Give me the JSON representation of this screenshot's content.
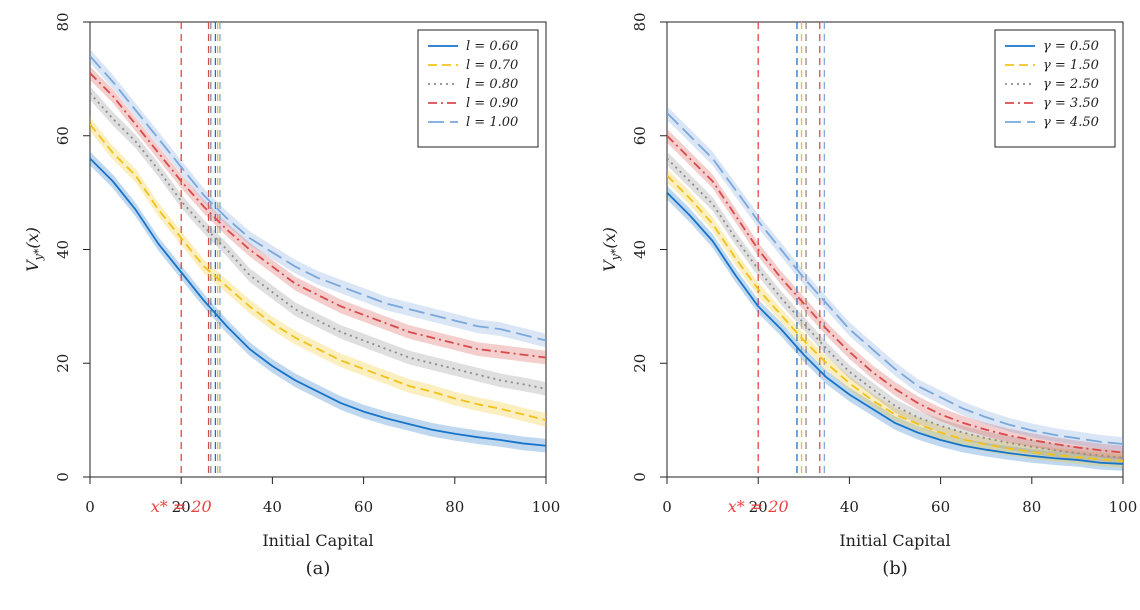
{
  "chart_data": [
    {
      "type": "line",
      "panel_label": "(a)",
      "xlabel": "Initial Capital",
      "ylabel": "V_{y*}(x)",
      "xlim": [
        0,
        100
      ],
      "ylim": [
        0,
        80
      ],
      "xticks": [
        0,
        20,
        40,
        60,
        80,
        100
      ],
      "yticks": [
        0,
        20,
        40,
        60,
        80
      ],
      "xstar_label": "x* = 20",
      "xstar_value": 20,
      "xstar_color": "#e8433f",
      "legend_position": "top-right",
      "series": [
        {
          "name": "l = 0.60",
          "color": "#1874c9",
          "dash": "solid",
          "vline": 27.5,
          "x": [
            0,
            5,
            10,
            15,
            20,
            25,
            30,
            35,
            40,
            45,
            50,
            55,
            60,
            65,
            70,
            75,
            80,
            85,
            90,
            95,
            100
          ],
          "values": [
            56,
            52,
            47,
            41,
            36,
            31,
            26.5,
            22.5,
            19.5,
            17,
            15,
            13,
            11.5,
            10.3,
            9.3,
            8.3,
            7.6,
            7,
            6.5,
            5.9,
            5.5
          ]
        },
        {
          "name": "l = 0.70",
          "color": "#f2c21a",
          "dash": "dashed",
          "vline": 28,
          "x": [
            0,
            5,
            10,
            15,
            20,
            25,
            30,
            35,
            40,
            45,
            50,
            55,
            60,
            65,
            70,
            75,
            80,
            85,
            90,
            95,
            100
          ],
          "values": [
            62,
            57,
            53,
            47,
            42,
            37,
            33.5,
            30,
            27,
            24.5,
            22.5,
            20.5,
            19,
            17.5,
            16,
            15,
            13.8,
            12.8,
            12,
            11,
            10
          ]
        },
        {
          "name": "l = 0.80",
          "color": "#8c8c8c",
          "dash": "dotted",
          "vline": 26.5,
          "x": [
            0,
            5,
            10,
            15,
            20,
            25,
            30,
            35,
            40,
            45,
            50,
            55,
            60,
            65,
            70,
            75,
            80,
            85,
            90,
            95,
            100
          ],
          "values": [
            67.5,
            63,
            59,
            54,
            48.5,
            44,
            40,
            35.5,
            32.5,
            29.5,
            27.5,
            25.5,
            24,
            22.5,
            21,
            20,
            19,
            18,
            17,
            16.3,
            15.5
          ]
        },
        {
          "name": "l = 0.90",
          "color": "#d94a4a",
          "dash": "dashdot",
          "vline": 26,
          "x": [
            0,
            5,
            10,
            15,
            20,
            25,
            30,
            35,
            40,
            45,
            50,
            55,
            60,
            65,
            70,
            75,
            80,
            85,
            90,
            95,
            100
          ],
          "values": [
            71,
            67,
            62,
            57,
            52,
            47.5,
            43.5,
            40,
            37,
            34,
            32,
            30,
            28.5,
            27,
            25.5,
            24.5,
            23.5,
            22.5,
            22,
            21.5,
            21
          ]
        },
        {
          "name": "l = 1.00",
          "color": "#7aa7dc",
          "dash": "longdash",
          "vline": 28.5,
          "x": [
            0,
            5,
            10,
            15,
            20,
            25,
            30,
            35,
            40,
            45,
            50,
            55,
            60,
            65,
            70,
            75,
            80,
            85,
            90,
            95,
            100
          ],
          "values": [
            74,
            69.5,
            64.5,
            59.5,
            54.5,
            49.5,
            45.5,
            42,
            39.5,
            37,
            35,
            33.5,
            32,
            30.5,
            29.5,
            28.5,
            27.5,
            26.5,
            26,
            25,
            24
          ]
        }
      ]
    },
    {
      "type": "line",
      "panel_label": "(b)",
      "xlabel": "Initial Capital",
      "ylabel": "V_{y*}(x)",
      "xlim": [
        0,
        100
      ],
      "ylim": [
        0,
        80
      ],
      "xticks": [
        0,
        20,
        40,
        60,
        80,
        100
      ],
      "yticks": [
        0,
        20,
        40,
        60,
        80
      ],
      "xstar_label": "x* = 20",
      "xstar_value": 20,
      "xstar_color": "#e8433f",
      "legend_position": "top-right",
      "series": [
        {
          "name": "γ = 0.50",
          "color": "#1874c9",
          "dash": "solid",
          "vline": 28.5,
          "x": [
            0,
            5,
            10,
            15,
            20,
            25,
            30,
            35,
            40,
            45,
            50,
            55,
            60,
            65,
            70,
            75,
            80,
            85,
            90,
            95,
            100
          ],
          "values": [
            50,
            46,
            41.5,
            35.5,
            30,
            26,
            21.5,
            17.5,
            14.5,
            12,
            9.5,
            7.8,
            6.5,
            5.5,
            4.8,
            4.2,
            3.7,
            3.3,
            3,
            2.5,
            2.3
          ]
        },
        {
          "name": "γ = 1.50",
          "color": "#f2c21a",
          "dash": "dashed",
          "vline": 29.5,
          "x": [
            0,
            5,
            10,
            15,
            20,
            25,
            30,
            35,
            40,
            45,
            50,
            55,
            60,
            65,
            70,
            75,
            80,
            85,
            90,
            95,
            100
          ],
          "values": [
            53,
            49,
            44.5,
            38.5,
            33,
            28.5,
            24,
            20,
            16.5,
            13.5,
            11,
            9.3,
            7.8,
            6.6,
            5.7,
            5,
            4.4,
            3.9,
            3.5,
            3.1,
            2.8
          ]
        },
        {
          "name": "γ = 2.50",
          "color": "#8c8c8c",
          "dash": "dotted",
          "vline": 30.5,
          "x": [
            0,
            5,
            10,
            15,
            20,
            25,
            30,
            35,
            40,
            45,
            50,
            55,
            60,
            65,
            70,
            75,
            80,
            85,
            90,
            95,
            100
          ],
          "values": [
            56,
            52,
            48,
            42,
            36.5,
            31.5,
            27,
            22.5,
            18.5,
            15.5,
            12.5,
            10.5,
            9,
            7.8,
            6.8,
            6,
            5.3,
            4.7,
            4.2,
            3.8,
            3.4
          ]
        },
        {
          "name": "γ = 3.50",
          "color": "#d94a4a",
          "dash": "dashdot",
          "vline": 33.5,
          "x": [
            0,
            5,
            10,
            15,
            20,
            25,
            30,
            35,
            40,
            45,
            50,
            55,
            60,
            65,
            70,
            75,
            80,
            85,
            90,
            95,
            100
          ],
          "values": [
            60,
            56,
            52,
            46,
            40,
            35,
            30.5,
            26,
            22,
            18.5,
            15.5,
            13,
            11,
            9.5,
            8.3,
            7.3,
            6.5,
            5.8,
            5.2,
            4.7,
            4.3
          ]
        },
        {
          "name": "γ = 4.50",
          "color": "#7aa7dc",
          "dash": "longdash",
          "vline": 34.5,
          "x": [
            0,
            5,
            10,
            15,
            20,
            25,
            30,
            35,
            40,
            45,
            50,
            55,
            60,
            65,
            70,
            75,
            80,
            85,
            90,
            95,
            100
          ],
          "values": [
            64,
            60,
            56,
            50.5,
            45,
            40,
            35,
            30.5,
            26,
            22.5,
            19,
            16,
            14,
            12,
            10.5,
            9.2,
            8.2,
            7.4,
            6.8,
            6.2,
            5.8
          ]
        }
      ]
    }
  ]
}
